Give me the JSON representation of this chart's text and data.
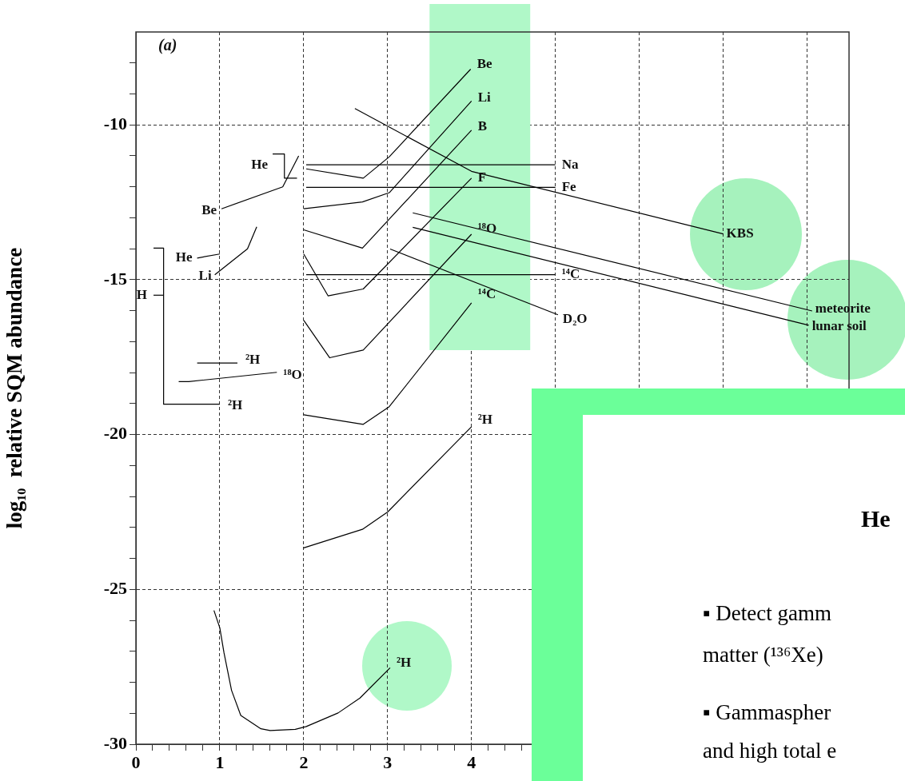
{
  "chart_data": {
    "type": "line",
    "ylabel": "log₁₀  relative SQM abundance",
    "xlim": [
      0,
      8.5
    ],
    "ylim": [
      -30,
      -7
    ],
    "xticks": [
      0,
      {
        "value": 0.2,
        "label": null
      },
      {
        "value": 0.4,
        "label": null
      },
      {
        "value": 0.6,
        "label": null
      },
      {
        "value": 0.8,
        "label": null
      },
      1,
      {
        "value": 1.2,
        "label": null
      },
      {
        "value": 1.4,
        "label": null
      },
      {
        "value": 1.6,
        "label": null
      },
      {
        "value": 1.8,
        "label": null
      },
      2,
      {
        "value": 2.2,
        "label": null
      },
      {
        "value": 2.4,
        "label": null
      },
      {
        "value": 2.6,
        "label": null
      },
      {
        "value": 2.8,
        "label": null
      },
      3,
      {
        "value": 3.2,
        "label": null
      },
      {
        "value": 3.4,
        "label": null
      },
      {
        "value": 3.6,
        "label": null
      },
      {
        "value": 3.8,
        "label": null
      },
      4,
      {
        "value": 4.2,
        "label": null
      },
      {
        "value": 4.4,
        "label": null
      },
      {
        "value": 4.6,
        "label": null
      },
      {
        "value": 4.8,
        "label": null
      },
      {
        "value": 5,
        "label": null
      },
      {
        "value": 6,
        "label": null
      },
      {
        "value": 7,
        "label": null
      },
      {
        "value": 8,
        "label": null
      }
    ],
    "yticks": [
      -30,
      {
        "value": -29,
        "label": null
      },
      {
        "value": -28,
        "label": null
      },
      {
        "value": -27,
        "label": null
      },
      {
        "value": -26,
        "label": null
      },
      -25,
      {
        "value": -24,
        "label": null
      },
      {
        "value": -23,
        "label": null
      },
      {
        "value": -22,
        "label": null
      },
      {
        "value": -21,
        "label": null
      },
      -20,
      {
        "value": -19,
        "label": null
      },
      {
        "value": -18,
        "label": null
      },
      {
        "value": -17,
        "label": null
      },
      {
        "value": -16,
        "label": null
      },
      -15,
      {
        "value": -14,
        "label": null
      },
      {
        "value": -13,
        "label": null
      },
      {
        "value": -12,
        "label": null
      },
      {
        "value": -11,
        "label": null
      },
      -10,
      {
        "value": -9,
        "label": null
      },
      {
        "value": -8,
        "label": null
      }
    ],
    "grid": true,
    "legend": false,
    "marker": "none",
    "line_style": "solid",
    "bands": [
      {
        "axis": "x",
        "from": 3.5,
        "to": 4.7,
        "color": "#b0f8c8"
      }
    ],
    "series": [
      {
        "type": "line",
        "name": "He",
        "color": "#000000",
        "x": [
          1.63,
          1.77,
          1.77,
          1.92
        ],
        "values": [
          -10.94,
          -10.94,
          -11.72,
          -11.72
        ]
      },
      {
        "type": "line",
        "name": "Be",
        "color": "#000000",
        "x": [
          1.02,
          1.75,
          1.94
        ],
        "values": [
          -12.71,
          -12.0,
          -11.0
        ]
      },
      {
        "type": "line",
        "name": "He",
        "color": "#000000",
        "x": [
          0.73,
          1.0
        ],
        "values": [
          -14.3,
          -14.17
        ]
      },
      {
        "type": "line",
        "name": "Li",
        "color": "#000000",
        "x": [
          0.94,
          1.33,
          1.44
        ],
        "values": [
          -14.84,
          -14.0,
          -13.29
        ]
      },
      {
        "type": "line",
        "name": "²H",
        "color": "#000000",
        "x": [
          0.21,
          0.33,
          0.33,
          1.0
        ],
        "values": [
          -13.98,
          -13.98,
          -19.02,
          -19.02
        ]
      },
      {
        "type": "line",
        "name": "H",
        "color": "#000000",
        "x": [
          0.21,
          0.33
        ],
        "values": [
          -15.5,
          -15.5
        ]
      },
      {
        "type": "line",
        "name": "²H",
        "color": "#000000",
        "x": [
          0.73,
          1.21
        ],
        "values": [
          -17.69,
          -17.69
        ]
      },
      {
        "type": "line",
        "name": "¹⁸O",
        "color": "#000000",
        "x": [
          0.51,
          0.63,
          1.68
        ],
        "values": [
          -18.29,
          -18.29,
          -17.99
        ]
      },
      {
        "type": "line",
        "name": "Na",
        "color": "#000000",
        "x": [
          2.03,
          5.0
        ],
        "values": [
          -11.29,
          -11.29
        ]
      },
      {
        "type": "line",
        "name": "Fe",
        "color": "#000000",
        "x": [
          2.03,
          5.0
        ],
        "values": [
          -12.02,
          -12.02
        ]
      },
      {
        "type": "line",
        "name": "¹⁴C",
        "color": "#000000",
        "x": [
          2.03,
          5.0
        ],
        "values": [
          -14.84,
          -14.84
        ]
      },
      {
        "type": "line",
        "name": "Be",
        "color": "#000000",
        "x": [
          2.03,
          2.71,
          3.02,
          3.99
        ],
        "values": [
          -11.42,
          -11.72,
          -11.03,
          -8.2
        ]
      },
      {
        "type": "line",
        "name": "Li",
        "color": "#000000",
        "x": [
          2.0,
          2.7,
          3.02,
          4.0
        ],
        "values": [
          -12.71,
          -12.49,
          -12.19,
          -9.23
        ]
      },
      {
        "type": "line",
        "name": "B",
        "color": "#000000",
        "x": [
          2.0,
          2.7,
          4.0
        ],
        "values": [
          -13.39,
          -13.98,
          -10.17
        ]
      },
      {
        "type": "line",
        "name": "F",
        "color": "#000000",
        "x": [
          2.0,
          2.29,
          2.71,
          4.0
        ],
        "values": [
          -14.17,
          -15.52,
          -15.3,
          -11.72
        ]
      },
      {
        "type": "line",
        "name": "¹⁸O",
        "color": "#000000",
        "x": [
          2.0,
          2.31,
          2.71,
          4.0
        ],
        "values": [
          -16.31,
          -17.52,
          -17.27,
          -13.53
        ]
      },
      {
        "type": "line",
        "name": "¹⁴C",
        "color": "#000000",
        "x": [
          2.0,
          2.71,
          3.02,
          4.0
        ],
        "values": [
          -19.36,
          -19.67,
          -19.1,
          -15.75
        ]
      },
      {
        "type": "line",
        "name": "²H",
        "color": "#000000",
        "x": [
          2.0,
          2.7,
          3.0,
          4.0
        ],
        "values": [
          -23.66,
          -23.06,
          -22.5,
          -19.75
        ]
      },
      {
        "type": "line",
        "name": "²H",
        "color": "#000000",
        "x": [
          0.93,
          1.0,
          1.05,
          1.14,
          1.25,
          1.49,
          1.6,
          1.9,
          2.03,
          2.41,
          2.67,
          3.03
        ],
        "values": [
          -25.68,
          -26.24,
          -27.05,
          -28.26,
          -29.07,
          -29.5,
          -29.56,
          -29.52,
          -29.43,
          -28.99,
          -28.51,
          -27.53
        ]
      },
      {
        "type": "line",
        "name": "KBS",
        "color": "#000000",
        "x": [
          2.61,
          4.0,
          7.0
        ],
        "values": [
          -9.47,
          -11.5,
          -13.52
        ]
      },
      {
        "type": "line",
        "name": "meteorite",
        "color": "#000000",
        "x": [
          3.3,
          8.06
        ],
        "values": [
          -12.84,
          -16.01
        ]
      },
      {
        "type": "line",
        "name": "lunar soil",
        "color": "#000000",
        "x": [
          3.3,
          8.02
        ],
        "values": [
          -13.31,
          -16.47
        ]
      },
      {
        "type": "line",
        "name": "D₂O",
        "color": "#000000",
        "x": [
          3.03,
          5.03
        ],
        "values": [
          -14.01,
          -16.13
        ]
      }
    ],
    "annotations": [
      "(a)",
      "He",
      "▪ Detect gamm",
      "matter (¹³⁶Xe)",
      "▪ Gammaspher",
      "and high total e"
    ]
  }
}
